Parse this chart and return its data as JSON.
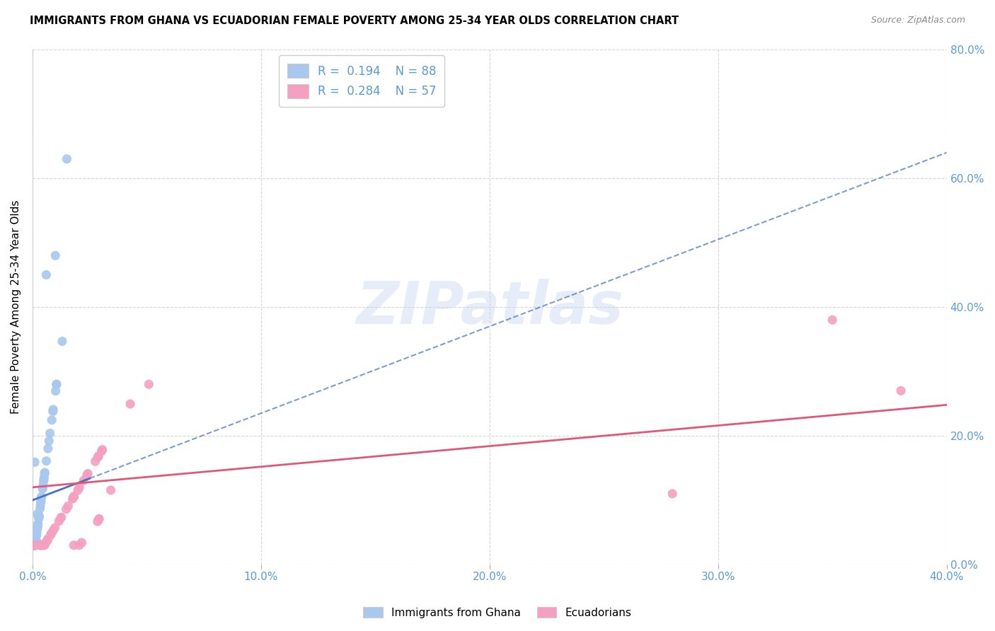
{
  "title": "IMMIGRANTS FROM GHANA VS ECUADORIAN FEMALE POVERTY AMONG 25-34 YEAR OLDS CORRELATION CHART",
  "source": "Source: ZipAtlas.com",
  "ylabel": "Female Poverty Among 25-34 Year Olds",
  "xlim": [
    0.0,
    0.4
  ],
  "ylim": [
    0.0,
    0.8
  ],
  "yticks": [
    0.0,
    0.2,
    0.4,
    0.6,
    0.8
  ],
  "xticks": [
    0.0,
    0.1,
    0.2,
    0.3,
    0.4
  ],
  "series1_color": "#A8C8EE",
  "series2_color": "#F5A0C0",
  "trend1_color": "#4472C4",
  "trend2_color": "#E05878",
  "R1": 0.194,
  "N1": 88,
  "R2": 0.284,
  "N2": 57,
  "watermark": "ZIPatlas",
  "axis_label_color": "#5B9BD5",
  "trend1_intercept": 0.1,
  "trend1_slope": 1.35,
  "trend2_intercept": 0.12,
  "trend2_slope": 0.32
}
